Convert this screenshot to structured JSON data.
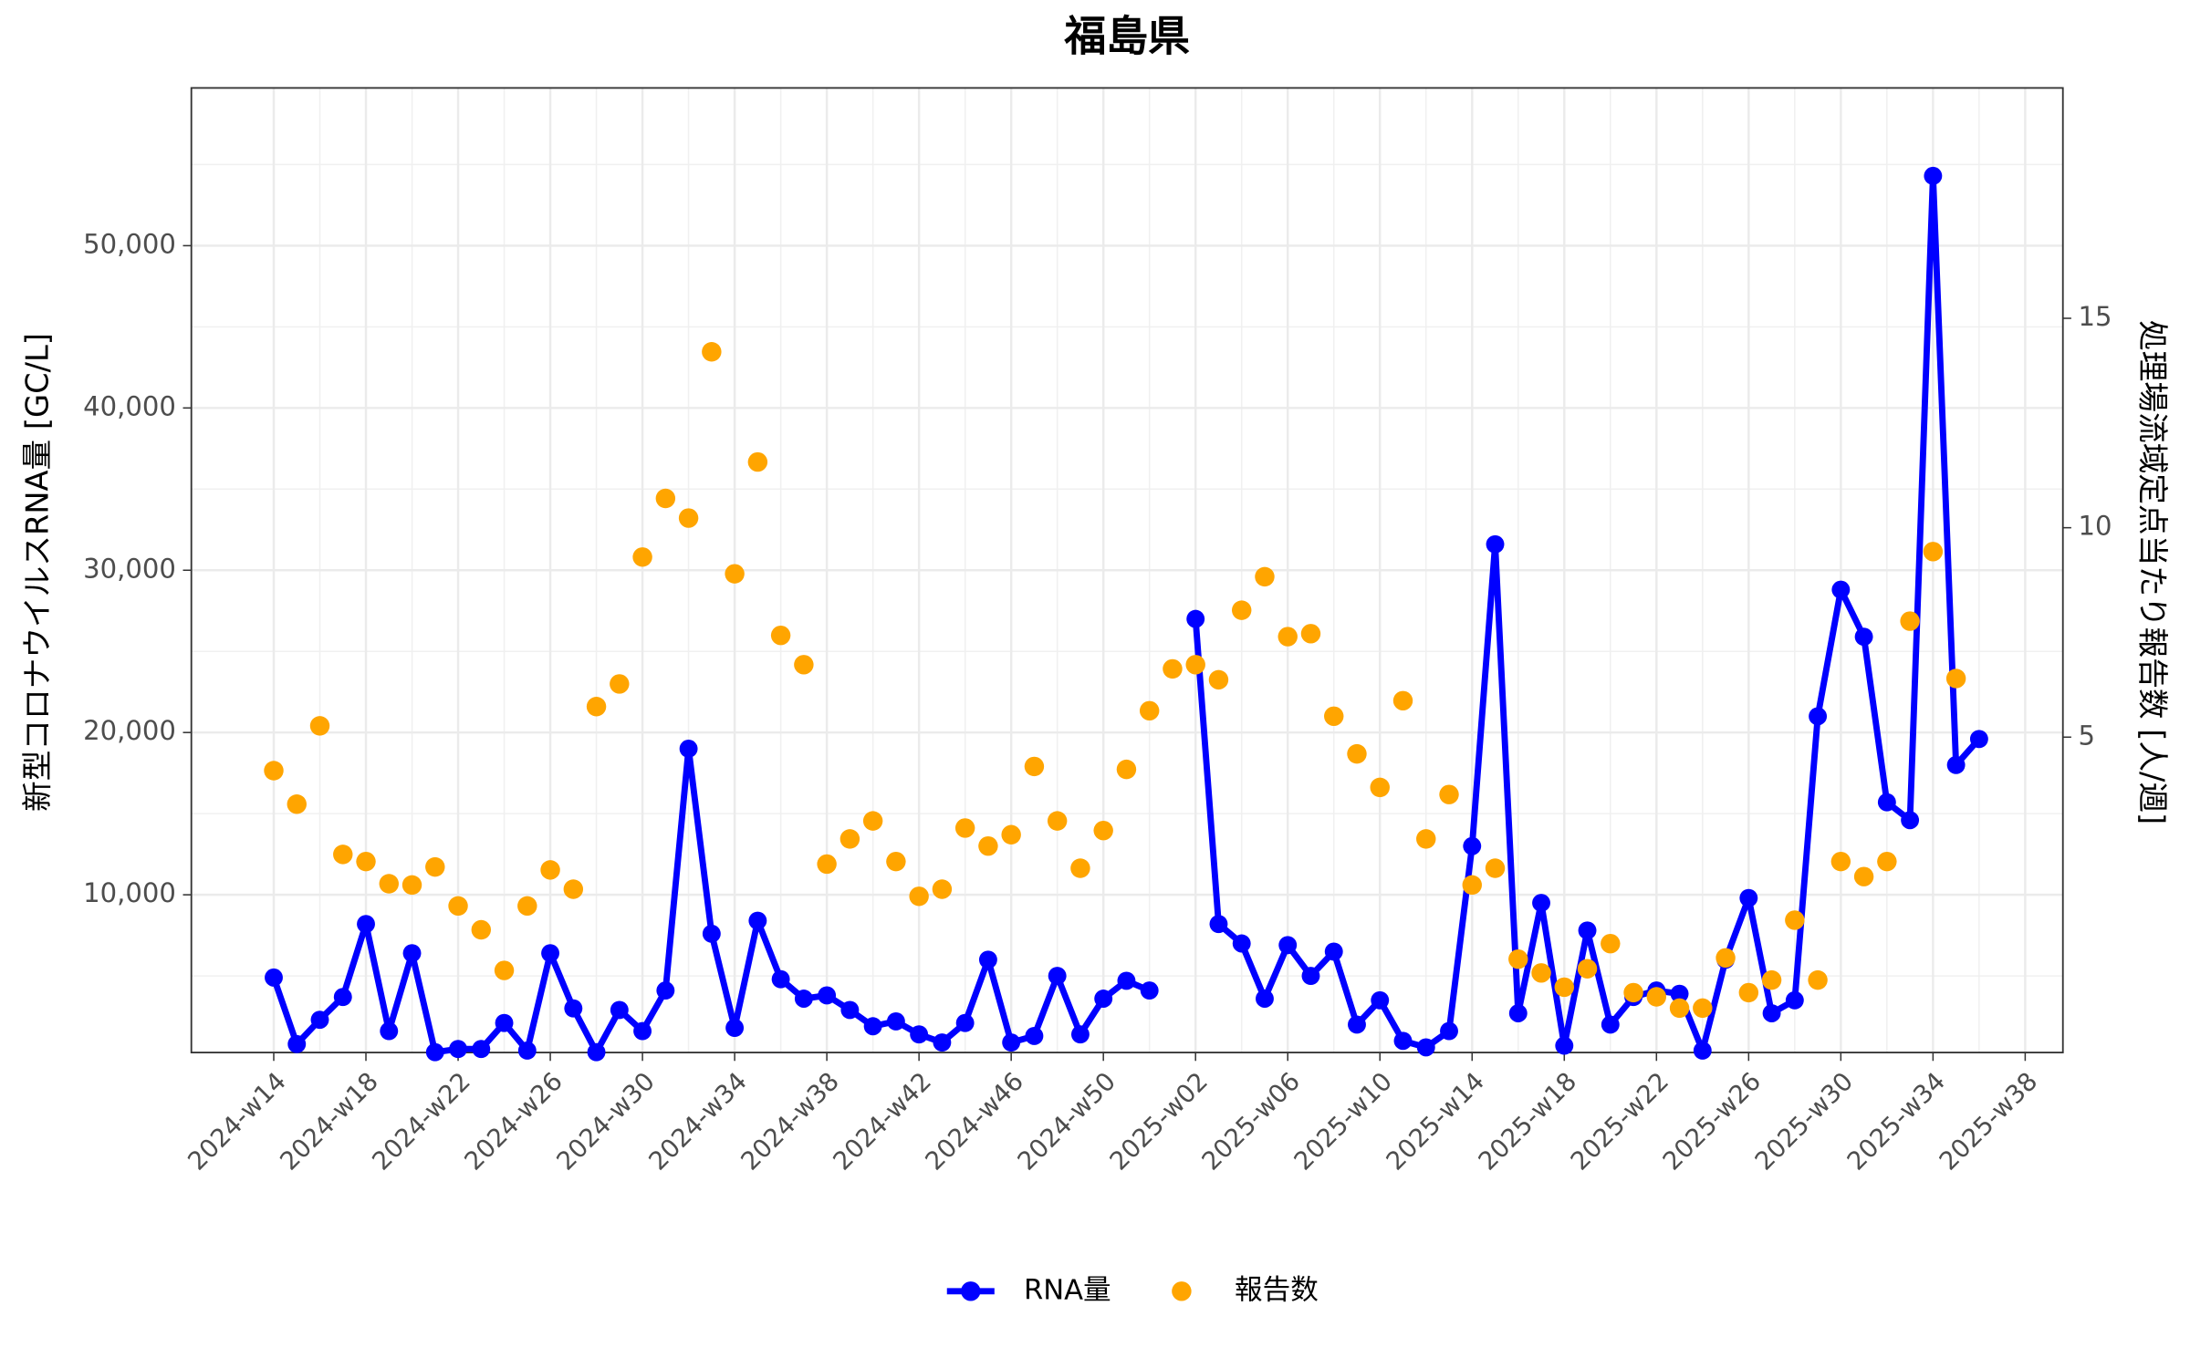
{
  "chart_data": {
    "type": "line",
    "title": "福島県",
    "y_label": "新型コロナウイルスRNA量 [GC/L]",
    "y2_label": "処理場流域定点当たり報告数 [人/週]",
    "categories": [
      "2024-w14",
      null,
      null,
      null,
      "2024-w18",
      null,
      null,
      null,
      "2024-w22",
      null,
      null,
      null,
      "2024-w26",
      null,
      null,
      null,
      "2024-w30",
      null,
      null,
      null,
      "2024-w34",
      null,
      null,
      null,
      "2024-w38",
      null,
      null,
      null,
      "2024-w42",
      null,
      null,
      null,
      "2024-w46",
      null,
      null,
      null,
      "2024-w50",
      null,
      null,
      null,
      "2025-w02",
      null,
      null,
      null,
      "2025-w06",
      null,
      null,
      null,
      "2025-w10",
      null,
      null,
      null,
      "2025-w14",
      null,
      null,
      null,
      "2025-w18",
      null,
      null,
      null,
      "2025-w22",
      null,
      null,
      null,
      "2025-w26",
      null,
      null,
      null,
      "2025-w30",
      null,
      null,
      null,
      "2025-w34",
      null,
      null,
      null,
      "2025-w38"
    ],
    "series": [
      {
        "name": "RNA量",
        "color": "#0000ff",
        "axis": "y",
        "style": "line-points",
        "values": [
          4900,
          800,
          2300,
          3700,
          8200,
          1600,
          6400,
          300,
          500,
          500,
          2100,
          400,
          6400,
          3000,
          300,
          2900,
          1600,
          4100,
          19000,
          7600,
          1800,
          8400,
          4800,
          3600,
          3800,
          2900,
          1900,
          2200,
          1400,
          900,
          2100,
          6000,
          900,
          1300,
          5000,
          1400,
          3600,
          4700,
          4100,
          null,
          27000,
          8200,
          7000,
          3600,
          6900,
          5000,
          6500,
          2000,
          3500,
          1000,
          600,
          1600,
          13000,
          31600,
          2700,
          9500,
          700,
          7800,
          2000,
          3700,
          4100,
          3900,
          400,
          6000,
          9800,
          2700,
          3500,
          21000,
          28800,
          25900,
          15700,
          14600,
          54300,
          18000,
          19600,
          null,
          null
        ]
      },
      {
        "name": "報告数",
        "color": "#ffa500",
        "axis": "y2",
        "style": "points",
        "values": [
          4.2,
          3.4,
          5.27,
          2.2,
          2.03,
          1.5,
          1.47,
          1.9,
          0.97,
          0.4,
          -0.57,
          0.97,
          1.83,
          1.37,
          5.73,
          6.27,
          9.3,
          10.7,
          10.23,
          14.2,
          8.9,
          11.57,
          7.43,
          6.73,
          1.97,
          2.57,
          3.0,
          2.03,
          1.2,
          1.37,
          2.83,
          2.4,
          2.67,
          4.3,
          3.0,
          1.87,
          2.77,
          4.23,
          5.63,
          6.63,
          6.73,
          6.37,
          8.03,
          8.83,
          7.4,
          7.47,
          5.5,
          4.6,
          3.8,
          5.87,
          2.57,
          3.63,
          1.47,
          1.87,
          -0.3,
          -0.63,
          -0.97,
          -0.53,
          0.07,
          -1.1,
          -1.2,
          -1.47,
          -1.47,
          -0.27,
          -1.1,
          -0.8,
          0.63,
          -0.8,
          2.03,
          1.67,
          2.03,
          7.77,
          9.43,
          6.4,
          null,
          null,
          null
        ]
      }
    ],
    "ylim": [
      280,
      59720
    ],
    "yticks": [
      {
        "value": 10000,
        "label": "10,000"
      },
      {
        "value": 20000,
        "label": "20,000"
      },
      {
        "value": 30000,
        "label": "30,000"
      },
      {
        "value": 40000,
        "label": "40,000"
      },
      {
        "value": 50000,
        "label": "50,000"
      }
    ],
    "y2lim": [
      -2.53,
      20.5
    ],
    "y2ticks": [
      5,
      10,
      15
    ],
    "grid": true,
    "legend": "bottom"
  }
}
